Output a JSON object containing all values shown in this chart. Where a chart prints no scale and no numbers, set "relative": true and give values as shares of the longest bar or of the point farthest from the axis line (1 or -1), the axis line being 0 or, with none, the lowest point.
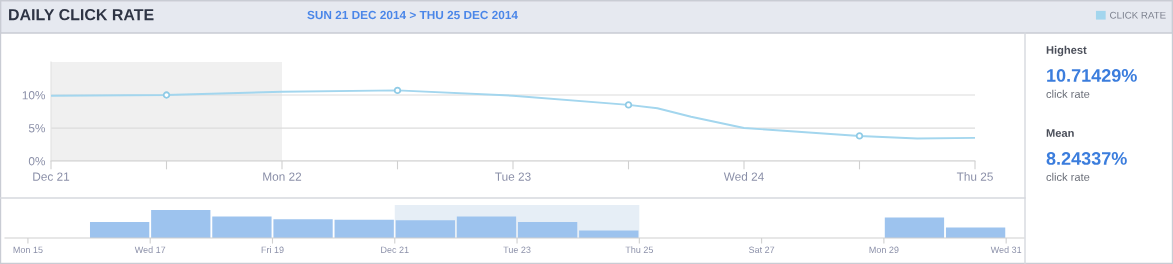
{
  "chart_data": [
    {
      "type": "line",
      "title": "DAILY CLICK RATE",
      "subtitle": "SUN 21 DEC 2014 > THU 25 DEC 2014",
      "series": [
        {
          "name": "CLICK RATE",
          "type": "line",
          "color": "#a3d6ee",
          "x": [
            "2014-12-21T00:00",
            "2014-12-21T12:00",
            "2014-12-22T00:00",
            "2014-12-22T12:00",
            "2014-12-23T00:00",
            "2014-12-23T12:00",
            "2014-12-23T15:00",
            "2014-12-23T18:30",
            "2014-12-24T00:00",
            "2014-12-24T12:00",
            "2014-12-24T18:00",
            "2014-12-25T00:00"
          ],
          "values": [
            9.9,
            10.0,
            10.5,
            10.7,
            9.9,
            8.5,
            8.0,
            6.7,
            5.0,
            3.8,
            3.4,
            3.5
          ]
        },
        {
          "type": "scatter",
          "marker": "circle",
          "color": "#8fcbe6",
          "x": [
            "2014-12-21T12:00",
            "2014-12-22T12:00",
            "2014-12-23T12:00",
            "2014-12-24T12:00"
          ],
          "values": [
            10.0,
            10.7,
            8.5,
            3.8
          ]
        }
      ],
      "xlim": [
        "2014-12-21T00:00",
        "2014-12-25T00:00"
      ],
      "xticks": [
        {
          "value": "2014-12-21T00:00",
          "label": "Dec 21"
        },
        {
          "value": "2014-12-21T12:00",
          "label": null
        },
        {
          "value": "2014-12-22T00:00",
          "label": "Mon 22"
        },
        {
          "value": "2014-12-22T12:00",
          "label": null
        },
        {
          "value": "2014-12-23T00:00",
          "label": "Tue 23"
        },
        {
          "value": "2014-12-23T12:00",
          "label": null
        },
        {
          "value": "2014-12-24T00:00",
          "label": "Wed 24"
        },
        {
          "value": "2014-12-24T12:00",
          "label": null
        },
        {
          "value": "2014-12-25T00:00",
          "label": "Thu 25"
        }
      ],
      "ylim": [
        0,
        15
      ],
      "yticks": [
        {
          "value": 0,
          "label": "0%"
        },
        {
          "value": 5,
          "label": "5%"
        },
        {
          "value": 10,
          "label": "10%"
        }
      ],
      "grid": "y",
      "legend": "top right",
      "bands": [
        {
          "axis": "x",
          "from": "2014-12-21T00:00",
          "to": "2014-12-22T00:00",
          "color": "#f0f0f0"
        }
      ]
    },
    {
      "type": "bar",
      "relative": true,
      "color": "#9dc3ee",
      "x": [
        "2014-12-16T12:00",
        "2014-12-17T12:00",
        "2014-12-18T12:00",
        "2014-12-19T12:00",
        "2014-12-20T12:00",
        "2014-12-21T12:00",
        "2014-12-22T12:00",
        "2014-12-23T12:00",
        "2014-12-24T12:00",
        "2014-12-29T12:00",
        "2014-12-30T12:00"
      ],
      "values": [
        0.57,
        1,
        0.77,
        0.67,
        0.65,
        0.63,
        0.77,
        0.57,
        0.27,
        0.73,
        0.37
      ],
      "xlim": [
        "2014-12-14T15:00",
        "2014-12-31T07:00"
      ],
      "xticks": [
        {
          "value": "2014-12-15",
          "label": "Mon 15"
        },
        {
          "value": "2014-12-17",
          "label": "Wed 17"
        },
        {
          "value": "2014-12-19",
          "label": "Fri 19"
        },
        {
          "value": "2014-12-21",
          "label": "Dec 21"
        },
        {
          "value": "2014-12-23",
          "label": "Tue 23"
        },
        {
          "value": "2014-12-25",
          "label": "Thu 25"
        },
        {
          "value": "2014-12-27",
          "label": "Sat 27"
        },
        {
          "value": "2014-12-29",
          "label": "Mon 29"
        },
        {
          "value": "2014-12-31",
          "label": "Wed 31"
        }
      ],
      "bands": [
        {
          "axis": "x",
          "from": "2014-12-21",
          "to": "2014-12-25",
          "color": "#e6eef6"
        }
      ]
    },
    {
      "type": "other",
      "annotations": [
        "Highest",
        "10.71429%",
        "click rate",
        "Mean",
        "8.24337%",
        "click rate"
      ]
    }
  ]
}
